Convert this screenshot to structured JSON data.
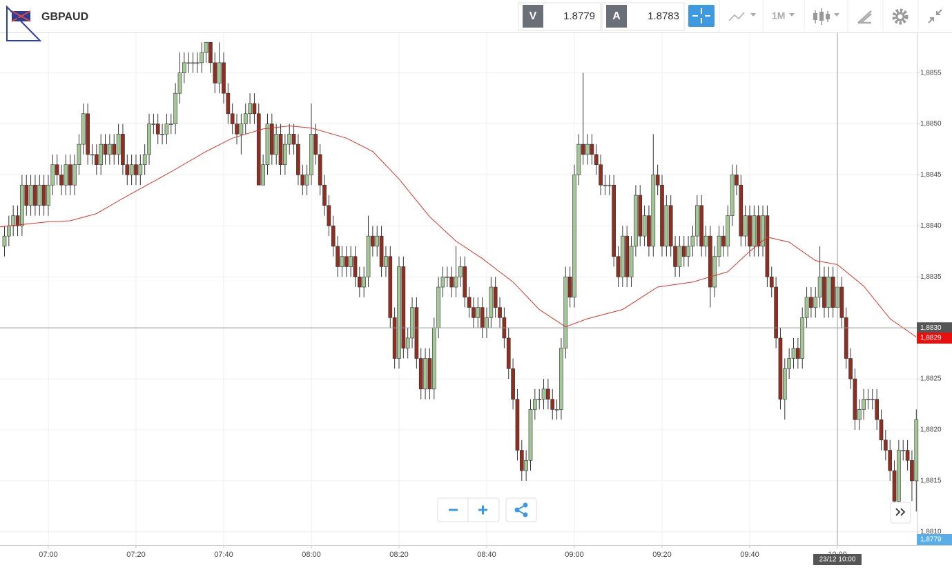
{
  "header": {
    "symbol": "GBPAUD",
    "sell_label": "V",
    "sell_price": 1.8779,
    "buy_label": "A",
    "buy_price": 1.8783,
    "timeframe": "1M"
  },
  "chart_data": {
    "type": "candlestick",
    "up_color": "#a3c796",
    "down_color": "#8e2f22",
    "x": [
      410,
      411,
      412,
      413,
      414,
      415,
      416,
      417,
      418,
      419,
      420,
      421,
      422,
      423,
      424,
      425,
      426,
      427,
      428,
      429,
      430,
      431,
      432,
      433,
      434,
      435,
      436,
      437,
      438,
      439,
      440,
      441,
      442,
      443,
      444,
      445,
      446,
      447,
      448,
      449,
      450,
      451,
      452,
      453,
      454,
      455,
      456,
      457,
      458,
      459,
      460,
      461,
      462,
      463,
      464,
      465,
      466,
      467,
      468,
      469,
      470,
      471,
      472,
      473,
      474,
      475,
      476,
      477,
      478,
      479,
      480,
      481,
      482,
      483,
      484,
      485,
      486,
      487,
      488,
      489,
      490,
      491,
      492,
      493,
      494,
      495,
      496,
      497,
      498,
      499,
      500,
      501,
      502,
      503,
      504,
      505,
      506,
      507,
      508,
      509,
      510,
      511,
      512,
      513,
      514,
      515,
      516,
      517,
      518,
      519,
      520,
      521,
      522,
      523,
      524,
      525,
      526,
      527,
      528,
      529,
      530,
      531,
      532,
      533,
      534,
      535,
      536,
      537,
      538,
      539,
      540,
      541,
      542,
      543,
      544,
      545,
      546,
      547,
      548,
      549,
      550,
      551,
      552,
      553,
      554,
      555,
      556,
      557,
      558,
      559,
      560,
      561,
      562,
      563,
      564,
      565,
      566,
      567,
      568,
      569,
      570,
      571,
      572,
      573,
      574,
      575,
      576,
      577,
      578,
      579,
      580,
      581,
      582,
      583,
      584,
      585,
      586,
      587,
      588,
      589,
      590,
      591,
      592,
      593,
      594,
      595,
      596,
      597,
      598,
      599,
      600,
      601,
      602,
      603,
      604,
      605,
      606,
      607,
      608,
      609,
      610,
      611,
      612,
      613,
      614,
      615,
      616,
      617,
      618
    ],
    "open": [
      1.8838,
      1.8839,
      1.884,
      1.8841,
      1.884,
      1.8844,
      1.8842,
      1.8844,
      1.8842,
      1.8844,
      1.8842,
      1.8844,
      1.8846,
      1.8845,
      1.8844,
      1.8846,
      1.8844,
      1.8846,
      1.8848,
      1.8851,
      1.8847,
      1.8847,
      1.8846,
      1.8848,
      1.8847,
      1.8848,
      1.8847,
      1.8849,
      1.8846,
      1.8845,
      1.8846,
      1.8845,
      1.8846,
      1.8847,
      1.885,
      1.885,
      1.8849,
      1.8849,
      1.885,
      1.885,
      1.8853,
      1.8855,
      1.8856,
      1.8856,
      1.8856,
      1.8856,
      1.8857,
      1.8858,
      1.8856,
      1.8854,
      1.8856,
      1.8853,
      1.8851,
      1.885,
      1.8849,
      1.885,
      1.8851,
      1.8852,
      1.8851,
      1.8844,
      1.8846,
      1.885,
      1.8847,
      1.8849,
      1.8846,
      1.8848,
      1.8849,
      1.8848,
      1.8845,
      1.8844,
      1.8845,
      1.8849,
      1.8847,
      1.8844,
      1.8842,
      1.884,
      1.8838,
      1.8836,
      1.8837,
      1.8836,
      1.8837,
      1.8835,
      1.8834,
      1.8835,
      1.8839,
      1.8838,
      1.8839,
      1.8836,
      1.8837,
      1.8831,
      1.8827,
      1.8836,
      1.8828,
      1.8829,
      1.8832,
      1.8827,
      1.8824,
      1.8827,
      1.8824,
      1.883,
      1.8834,
      1.8835,
      1.8835,
      1.8834,
      1.8835,
      1.8836,
      1.8833,
      1.8832,
      1.8831,
      1.8832,
      1.883,
      1.8831,
      1.8834,
      1.8832,
      1.8831,
      1.8829,
      1.8826,
      1.8823,
      1.8818,
      1.8816,
      1.8817,
      1.8822,
      1.8823,
      1.8823,
      1.8824,
      1.8823,
      1.8822,
      1.8822,
      1.8828,
      1.8835,
      1.8833,
      1.8845,
      1.8848,
      1.8847,
      1.8848,
      1.8847,
      1.8846,
      1.8844,
      1.8844,
      1.8844,
      1.8837,
      1.8835,
      1.8839,
      1.8835,
      1.8838,
      1.8843,
      1.8839,
      1.8841,
      1.8838,
      1.8845,
      1.8844,
      1.8838,
      1.8842,
      1.8838,
      1.8836,
      1.8838,
      1.8837,
      1.8838,
      1.8839,
      1.8842,
      1.8838,
      1.8839,
      1.8834,
      1.8837,
      1.8839,
      1.8838,
      1.8841,
      1.8845,
      1.8844,
      1.8839,
      1.8841,
      1.8838,
      1.8841,
      1.8838,
      1.8841,
      1.8835,
      1.8834,
      1.8829,
      1.8823,
      1.8826,
      1.8827,
      1.8828,
      1.8827,
      1.8831,
      1.8833,
      1.8832,
      1.8833,
      1.8835,
      1.8832,
      1.8835,
      1.8832,
      1.8834,
      1.8831,
      1.8827,
      1.8825,
      1.8821,
      1.8822,
      1.8823,
      1.8823,
      1.8823,
      1.8821,
      1.8819,
      1.8818,
      1.8816,
      1.8813,
      1.8818,
      1.8818,
      1.8817,
      1.8815
    ],
    "high": [
      1.884,
      1.8841,
      1.8842,
      1.8842,
      1.8845,
      1.8845,
      1.8845,
      1.8845,
      1.8845,
      1.8845,
      1.8845,
      1.8847,
      1.8847,
      1.8846,
      1.8847,
      1.8847,
      1.8847,
      1.8849,
      1.8852,
      1.8852,
      1.8848,
      1.8848,
      1.8849,
      1.8849,
      1.8849,
      1.8849,
      1.885,
      1.885,
      1.8847,
      1.8847,
      1.8847,
      1.8847,
      1.8848,
      1.8851,
      1.8851,
      1.8851,
      1.885,
      1.8851,
      1.8851,
      1.8854,
      1.8857,
      1.8857,
      1.8857,
      1.8857,
      1.8857,
      1.8858,
      1.8858,
      1.8858,
      1.8857,
      1.8858,
      1.8857,
      1.8854,
      1.8852,
      1.8851,
      1.8851,
      1.8852,
      1.8853,
      1.8853,
      1.8852,
      1.8847,
      1.8851,
      1.8851,
      1.885,
      1.885,
      1.8849,
      1.885,
      1.885,
      1.8849,
      1.8846,
      1.8846,
      1.8852,
      1.885,
      1.8848,
      1.8845,
      1.8843,
      1.8841,
      1.8839,
      1.8838,
      1.8838,
      1.8838,
      1.8838,
      1.8836,
      1.8836,
      1.8841,
      1.884,
      1.884,
      1.884,
      1.8838,
      1.8838,
      1.8832,
      1.8837,
      1.8837,
      1.883,
      1.8833,
      1.8833,
      1.8828,
      1.8828,
      1.8828,
      1.8831,
      1.8835,
      1.8836,
      1.8836,
      1.8836,
      1.8838,
      1.8837,
      1.8837,
      1.8834,
      1.8833,
      1.8833,
      1.8833,
      1.8832,
      1.8835,
      1.8835,
      1.8833,
      1.8832,
      1.883,
      1.8827,
      1.8824,
      1.8819,
      1.8818,
      1.8823,
      1.8824,
      1.8824,
      1.8825,
      1.8825,
      1.8824,
      1.8823,
      1.8829,
      1.8836,
      1.8836,
      1.8846,
      1.8849,
      1.8855,
      1.8849,
      1.8849,
      1.8848,
      1.8847,
      1.8845,
      1.8845,
      1.8845,
      1.8838,
      1.884,
      1.884,
      1.8839,
      1.8844,
      1.8844,
      1.8842,
      1.8842,
      1.8849,
      1.8846,
      1.8845,
      1.8843,
      1.8843,
      1.8839,
      1.8839,
      1.8839,
      1.8839,
      1.884,
      1.8843,
      1.8843,
      1.884,
      1.884,
      1.8838,
      1.884,
      1.884,
      1.8842,
      1.8846,
      1.8846,
      1.8845,
      1.8842,
      1.8842,
      1.8842,
      1.8842,
      1.8842,
      1.8842,
      1.8836,
      1.8835,
      1.883,
      1.8827,
      1.8828,
      1.8829,
      1.8829,
      1.8832,
      1.8834,
      1.8834,
      1.8834,
      1.8838,
      1.8836,
      1.8836,
      1.8836,
      1.8835,
      1.8835,
      1.8832,
      1.8828,
      1.8826,
      1.8823,
      1.8824,
      1.8824,
      1.8824,
      1.8824,
      1.8822,
      1.882,
      1.8819,
      1.8817,
      1.8819,
      1.8819,
      1.8819,
      1.8818,
      1.8822
    ],
    "low": [
      1.8837,
      1.8838,
      1.8839,
      1.8839,
      1.8839,
      1.8841,
      1.8841,
      1.8841,
      1.8841,
      1.8841,
      1.8841,
      1.8843,
      1.8844,
      1.8843,
      1.8843,
      1.8843,
      1.8843,
      1.8845,
      1.8847,
      1.8846,
      1.8846,
      1.8845,
      1.8845,
      1.8846,
      1.8846,
      1.8846,
      1.8846,
      1.8845,
      1.8844,
      1.8844,
      1.8844,
      1.8844,
      1.8845,
      1.8846,
      1.8849,
      1.8848,
      1.8848,
      1.8848,
      1.8849,
      1.8849,
      1.8852,
      1.8854,
      1.8855,
      1.8855,
      1.8855,
      1.8855,
      1.8856,
      1.8855,
      1.8853,
      1.8853,
      1.8852,
      1.885,
      1.8849,
      1.8848,
      1.8847,
      1.8849,
      1.885,
      1.885,
      1.8844,
      1.8844,
      1.8845,
      1.8846,
      1.8846,
      1.8845,
      1.8845,
      1.8847,
      1.8847,
      1.8844,
      1.8843,
      1.8843,
      1.8844,
      1.8846,
      1.8843,
      1.8841,
      1.8839,
      1.8837,
      1.8835,
      1.8835,
      1.8835,
      1.8835,
      1.8834,
      1.8833,
      1.8833,
      1.8834,
      1.8837,
      1.8837,
      1.8835,
      1.8835,
      1.883,
      1.8826,
      1.8826,
      1.8827,
      1.8827,
      1.8828,
      1.8826,
      1.8823,
      1.8823,
      1.8823,
      1.8823,
      1.8829,
      1.8833,
      1.8834,
      1.8833,
      1.8833,
      1.8834,
      1.8832,
      1.8831,
      1.883,
      1.883,
      1.8829,
      1.8829,
      1.883,
      1.8831,
      1.883,
      1.8828,
      1.8825,
      1.8822,
      1.8817,
      1.8815,
      1.8815,
      1.8816,
      1.8821,
      1.8822,
      1.8822,
      1.8822,
      1.8821,
      1.8821,
      1.8821,
      1.8827,
      1.8832,
      1.8832,
      1.8844,
      1.8846,
      1.8846,
      1.8846,
      1.8845,
      1.8843,
      1.8843,
      1.8843,
      1.8836,
      1.8834,
      1.8834,
      1.8834,
      1.8834,
      1.8837,
      1.8838,
      1.8838,
      1.8837,
      1.8837,
      1.8843,
      1.8837,
      1.8837,
      1.8837,
      1.8835,
      1.8835,
      1.8836,
      1.8836,
      1.8837,
      1.8838,
      1.8837,
      1.8837,
      1.8832,
      1.8833,
      1.8836,
      1.8837,
      1.8837,
      1.884,
      1.8843,
      1.8838,
      1.8838,
      1.8837,
      1.8837,
      1.8837,
      1.8837,
      1.8834,
      1.8833,
      1.8828,
      1.8822,
      1.8821,
      1.8825,
      1.8826,
      1.8826,
      1.8826,
      1.883,
      1.8831,
      1.8831,
      1.8832,
      1.8831,
      1.8831,
      1.8831,
      1.8831,
      1.883,
      1.8826,
      1.8824,
      1.882,
      1.882,
      1.8821,
      1.8822,
      1.8822,
      1.882,
      1.8818,
      1.8817,
      1.8815,
      1.8812,
      1.8812,
      1.8817,
      1.8816,
      1.8813,
      1.8812
    ],
    "close": [
      1.8839,
      1.884,
      1.8841,
      1.884,
      1.8844,
      1.8842,
      1.8844,
      1.8842,
      1.8844,
      1.8842,
      1.8844,
      1.8846,
      1.8845,
      1.8844,
      1.8846,
      1.8844,
      1.8846,
      1.8848,
      1.8851,
      1.8847,
      1.8847,
      1.8846,
      1.8848,
      1.8847,
      1.8848,
      1.8847,
      1.8849,
      1.8846,
      1.8845,
      1.8846,
      1.8845,
      1.8846,
      1.8847,
      1.885,
      1.885,
      1.8849,
      1.8849,
      1.885,
      1.885,
      1.8853,
      1.8855,
      1.8856,
      1.8856,
      1.8856,
      1.8856,
      1.8857,
      1.8858,
      1.8856,
      1.8854,
      1.8856,
      1.8853,
      1.8851,
      1.885,
      1.8849,
      1.885,
      1.8851,
      1.8852,
      1.8851,
      1.8844,
      1.8846,
      1.885,
      1.8847,
      1.8849,
      1.8846,
      1.8848,
      1.8849,
      1.8848,
      1.8845,
      1.8844,
      1.8845,
      1.8849,
      1.8847,
      1.8844,
      1.8842,
      1.884,
      1.8838,
      1.8836,
      1.8837,
      1.8836,
      1.8837,
      1.8835,
      1.8834,
      1.8835,
      1.8839,
      1.8838,
      1.8839,
      1.8836,
      1.8837,
      1.8831,
      1.8827,
      1.8836,
      1.8828,
      1.8829,
      1.8832,
      1.8827,
      1.8824,
      1.8827,
      1.8824,
      1.883,
      1.8834,
      1.8835,
      1.8835,
      1.8834,
      1.8835,
      1.8836,
      1.8833,
      1.8832,
      1.8831,
      1.8832,
      1.883,
      1.8831,
      1.8834,
      1.8832,
      1.8831,
      1.8829,
      1.8826,
      1.8823,
      1.8818,
      1.8816,
      1.8817,
      1.8822,
      1.8823,
      1.8823,
      1.8824,
      1.8823,
      1.8822,
      1.8822,
      1.8828,
      1.8835,
      1.8833,
      1.8845,
      1.8848,
      1.8847,
      1.8848,
      1.8847,
      1.8846,
      1.8844,
      1.8844,
      1.8844,
      1.8837,
      1.8835,
      1.8839,
      1.8835,
      1.8838,
      1.8843,
      1.8839,
      1.8841,
      1.8838,
      1.8845,
      1.8844,
      1.8838,
      1.8842,
      1.8838,
      1.8836,
      1.8838,
      1.8837,
      1.8838,
      1.8839,
      1.8842,
      1.8838,
      1.8839,
      1.8834,
      1.8837,
      1.8839,
      1.8838,
      1.8841,
      1.8845,
      1.8844,
      1.8839,
      1.8841,
      1.8838,
      1.8841,
      1.8838,
      1.8841,
      1.8835,
      1.8834,
      1.8829,
      1.8823,
      1.8826,
      1.8827,
      1.8828,
      1.8827,
      1.8831,
      1.8833,
      1.8832,
      1.8833,
      1.8835,
      1.8832,
      1.8835,
      1.8832,
      1.8834,
      1.8831,
      1.8827,
      1.8825,
      1.8821,
      1.8822,
      1.8823,
      1.8823,
      1.8823,
      1.8821,
      1.8819,
      1.8818,
      1.8816,
      1.8813,
      1.8818,
      1.8818,
      1.8817,
      1.8815,
      1.8821
    ],
    "ma": {
      "color": "#d9362b",
      "x": [
        409,
        420,
        425,
        431,
        437,
        448,
        456,
        462,
        469,
        475,
        480,
        488,
        494,
        500,
        507,
        513,
        519,
        526,
        532,
        538,
        543,
        551,
        559,
        567,
        575,
        580,
        584,
        589,
        595,
        600,
        606,
        612,
        618
      ],
      "values": [
        1.88399,
        1.88404,
        1.88405,
        1.88412,
        1.88427,
        1.88453,
        1.88473,
        1.88486,
        1.88495,
        1.88498,
        1.88496,
        1.88486,
        1.88473,
        1.88446,
        1.88409,
        1.88385,
        1.88368,
        1.88345,
        1.88318,
        1.88301,
        1.88309,
        1.88318,
        1.8834,
        1.88345,
        1.88355,
        1.88375,
        1.88389,
        1.88384,
        1.88366,
        1.88362,
        1.88341,
        1.88309,
        1.88291
      ]
    },
    "xlim": [
      408.98,
      618.11
    ],
    "ylim": [
      1.88087,
      1.88589
    ],
    "xticks": [
      {
        "value": 420,
        "label": "07:00"
      },
      {
        "value": 440,
        "label": "07:20"
      },
      {
        "value": 460,
        "label": "07:40"
      },
      {
        "value": 480,
        "label": "08:00"
      },
      {
        "value": 500,
        "label": "08:20"
      },
      {
        "value": 520,
        "label": "08:40"
      },
      {
        "value": 540,
        "label": "09:00"
      },
      {
        "value": 560,
        "label": "09:20"
      },
      {
        "value": 580,
        "label": "09:40"
      },
      {
        "value": 600,
        "label": "10:00"
      }
    ],
    "yticks": [
      {
        "value": 1.881,
        "label": "1,8810"
      },
      {
        "value": 1.8815,
        "label": "1,8815"
      },
      {
        "value": 1.882,
        "label": "1,8820"
      },
      {
        "value": 1.8825,
        "label": "1,8825"
      },
      {
        "value": 1.883,
        "label": "1,8830"
      },
      {
        "value": 1.8835,
        "label": "1,8835"
      },
      {
        "value": 1.884,
        "label": "1,8840"
      },
      {
        "value": 1.8845,
        "label": "1,8845"
      },
      {
        "value": 1.885,
        "label": "1,8850"
      },
      {
        "value": 1.8855,
        "label": "1,8855"
      }
    ],
    "grid": true,
    "crosshair": {
      "price": {
        "value": 1.883,
        "label": "1,8830"
      },
      "time": {
        "value": 600,
        "label": "23/12 10:00"
      }
    },
    "last_tag": {
      "value": 1.8829,
      "label": "1,8829"
    },
    "bid_tag": "1,8779"
  }
}
